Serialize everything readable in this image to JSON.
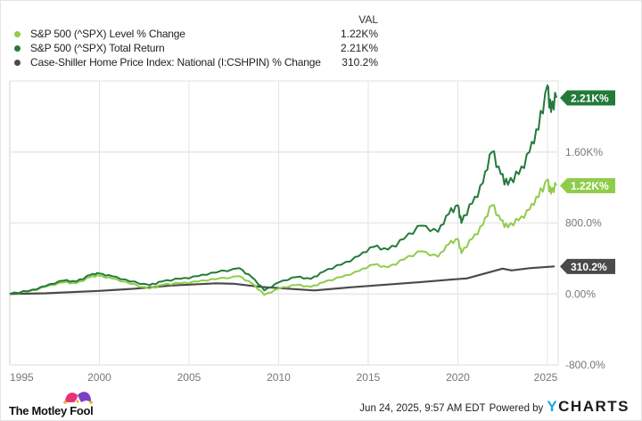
{
  "legend": {
    "header": "VAL",
    "items": [
      {
        "label": "S&P 500 (^SPX) Level % Change",
        "value": "1.22K%",
        "color": "#8fcc4a"
      },
      {
        "label": "S&P 500 (^SPX) Total Return",
        "value": "2.21K%",
        "color": "#237a3a"
      },
      {
        "label": "Case-Shiller Home Price Index: National (I:CSHPIN) % Change",
        "value": "310.2%",
        "color": "#4a4a4a"
      }
    ]
  },
  "footer": {
    "brand": "The Motley Fool",
    "timestamp": "Jun 24, 2025, 9:57 AM EDT",
    "powered_by": "Powered by",
    "ycharts_y": "Y",
    "ycharts_rest": "CHARTS"
  },
  "chart_data": {
    "type": "line",
    "title": "",
    "xlabel": "",
    "ylabel": "",
    "xlim": [
      1995,
      2025.6
    ],
    "ylim": [
      -800,
      2400
    ],
    "grid": true,
    "legend_position": "top-left",
    "x_ticks": [
      1995,
      2000,
      2005,
      2010,
      2015,
      2020,
      2025
    ],
    "x_tick_labels": [
      "1995",
      "2000",
      "2005",
      "2010",
      "2015",
      "2020",
      "2025"
    ],
    "y_ticks": [
      1600,
      800,
      0,
      -800
    ],
    "y_tick_labels": [
      "1.60K%",
      "800.0%",
      "0.00%",
      "-800.0%"
    ],
    "series": [
      {
        "name": "S&P 500 (^SPX) Total Return",
        "color": "#237a3a",
        "end_label": "2.21K%",
        "x": [
          1995,
          1996,
          1997,
          1998,
          1998.7,
          1999.5,
          2000.0,
          2000.7,
          2001.7,
          2002.8,
          2003.5,
          2004.5,
          2005.5,
          2006.5,
          2007.8,
          2008.5,
          2009.2,
          2010,
          2011,
          2011.8,
          2012.5,
          2013.5,
          2014.5,
          2015.3,
          2016.1,
          2017,
          2018,
          2018.9,
          2019.5,
          2020.0,
          2020.2,
          2020.8,
          2021.4,
          2021.9,
          2022.4,
          2022.8,
          2023.4,
          2024,
          2024.5,
          2025.0,
          2025.2,
          2025.5
        ],
        "y": [
          0,
          30,
          90,
          150,
          140,
          215,
          230,
          200,
          140,
          100,
          140,
          170,
          200,
          240,
          290,
          190,
          40,
          130,
          190,
          170,
          250,
          330,
          430,
          530,
          500,
          620,
          770,
          700,
          900,
          1000,
          800,
          1020,
          1250,
          1600,
          1350,
          1230,
          1350,
          1600,
          1850,
          2350,
          2050,
          2210
        ]
      },
      {
        "name": "S&P 500 (^SPX) Level % Change",
        "color": "#8fcc4a",
        "end_label": "1.22K%",
        "x": [
          1995,
          1996,
          1997,
          1998,
          1998.7,
          1999.5,
          2000.0,
          2000.7,
          2001.7,
          2002.8,
          2003.5,
          2004.5,
          2005.5,
          2006.5,
          2007.8,
          2008.5,
          2009.2,
          2010,
          2011,
          2011.8,
          2012.5,
          2013.5,
          2014.5,
          2015.3,
          2016.1,
          2017,
          2018,
          2018.9,
          2019.5,
          2020.0,
          2020.2,
          2020.8,
          2021.4,
          2021.9,
          2022.4,
          2022.8,
          2023.4,
          2024,
          2024.5,
          2025.0,
          2025.2,
          2025.5
        ],
        "y": [
          0,
          25,
          80,
          130,
          120,
          190,
          205,
          175,
          115,
          60,
          100,
          120,
          140,
          165,
          200,
          120,
          -10,
          60,
          100,
          80,
          130,
          190,
          260,
          330,
          300,
          390,
          480,
          420,
          560,
          620,
          460,
          620,
          780,
          1000,
          830,
          750,
          830,
          950,
          1090,
          1290,
          1130,
          1220
        ]
      },
      {
        "name": "Case-Shiller Home Price Index: National (I:CSHPIN) % Change",
        "color": "#4a4a4a",
        "end_label": "310.2%",
        "x": [
          1995,
          1997,
          2000,
          2002,
          2004,
          2006.5,
          2007.5,
          2009,
          2010.5,
          2012,
          2014,
          2016,
          2018,
          2019.5,
          2020.5,
          2021.5,
          2022.5,
          2023.0,
          2024,
          2025.4
        ],
        "y": [
          0,
          8,
          35,
          60,
          95,
          120,
          115,
          80,
          60,
          40,
          75,
          105,
          135,
          160,
          175,
          230,
          285,
          265,
          290,
          310.2
        ]
      }
    ]
  }
}
